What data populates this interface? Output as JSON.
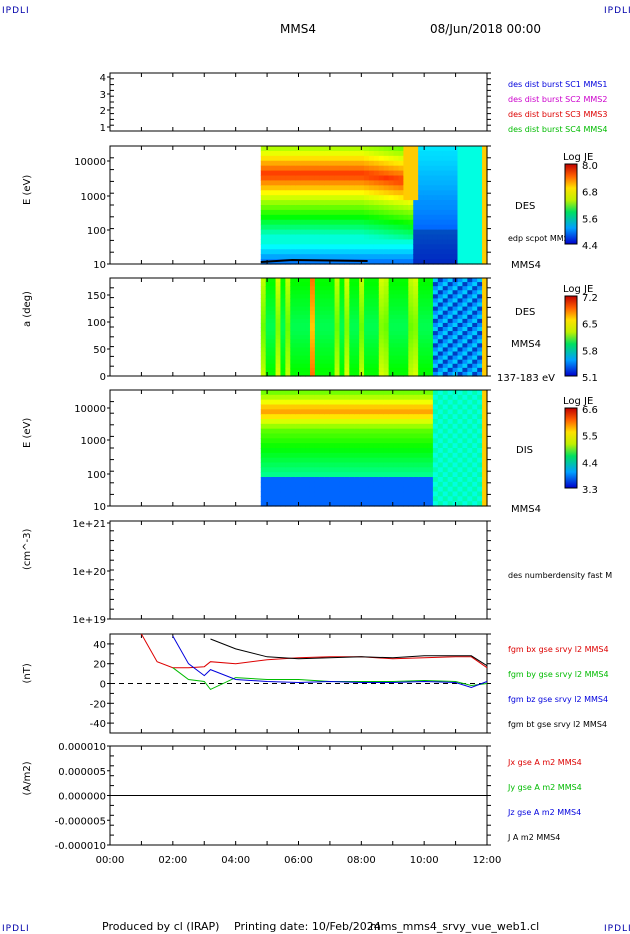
{
  "corners": {
    "tl": "IPDLI",
    "tr": "IPDLI",
    "bl": "IPDLI",
    "br": "IPDLI"
  },
  "header": {
    "spacecraft": "MMS4",
    "datetime": "08/Jun/2018 00:00"
  },
  "footer": {
    "produced_by": "Produced by cl (IRAP)",
    "printing_date": "Printing date: 10/Feb/2024",
    "script": "mms_mms4_srvy_vue_web1.cl"
  },
  "colors": {
    "red": "#dd0000",
    "green": "#00bb00",
    "blue": "#0000dd",
    "magenta": "#cc00cc",
    "black": "#000000"
  },
  "chart_data": [
    {
      "type": "line",
      "yticks": [
        "4",
        "3",
        "2",
        "1"
      ],
      "legend": [
        "des dist burst SC1 MMS1",
        "des dist burst SC2 MMS2",
        "des dist burst SC3 MMS3",
        "des dist burst SC4 MMS4"
      ],
      "legend_colors": [
        "#0000dd",
        "#cc00cc",
        "#dd0000",
        "#00bb00"
      ]
    },
    {
      "type": "heatmap",
      "ylabel": "E (eV)",
      "yticks": [
        "10000",
        "1000",
        "100",
        "10"
      ],
      "label": "DES",
      "label2": "MMS4",
      "overlay": "edp scpot MMS4",
      "colorbar": {
        "title": "Log JE",
        "ticks": [
          "8.0",
          "6.8",
          "5.6",
          "4.4"
        ]
      }
    },
    {
      "type": "heatmap",
      "ylabel": "a (deg)",
      "yticks": [
        "150",
        "100",
        "50",
        "0"
      ],
      "label": "DES",
      "label2": "MMS4",
      "energy_range": "137-183 eV",
      "colorbar": {
        "title": "Log JE",
        "ticks": [
          "7.2",
          "6.5",
          "5.8",
          "5.1"
        ]
      }
    },
    {
      "type": "heatmap",
      "ylabel": "E (eV)",
      "yticks": [
        "10000",
        "1000",
        "100",
        "10"
      ],
      "label": "DIS",
      "label2": "MMS4",
      "colorbar": {
        "title": "Log JE",
        "ticks": [
          "6.6",
          "5.5",
          "4.4",
          "3.3"
        ]
      }
    },
    {
      "type": "line",
      "ylabel": "(cm^-3)",
      "yticks": [
        "1e+21",
        "1e+20",
        "1e+19"
      ],
      "legend": [
        "des numberdensity fast M"
      ],
      "legend_colors": [
        "#000000"
      ]
    },
    {
      "type": "line",
      "ylabel": "(nT)",
      "yticks": [
        "40",
        "20",
        "0",
        "-20",
        "-40"
      ],
      "ylim": [
        -50,
        50
      ],
      "legend": [
        "fgm bx gse srvy l2 MMS4",
        "fgm by gse srvy l2 MMS4",
        "fgm bz gse srvy l2 MMS4",
        "fgm bt gse srvy l2 MMS4"
      ],
      "legend_colors": [
        "#dd0000",
        "#00bb00",
        "#0000dd",
        "#000000"
      ],
      "x_hours": [
        0,
        1,
        1.5,
        2,
        2.5,
        3,
        3.2,
        4,
        5,
        6,
        7,
        8,
        9,
        10,
        11,
        11.5,
        12
      ],
      "series": [
        {
          "name": "fgm bx gse srvy l2 MMS4",
          "color": "#dd0000",
          "values": [
            null,
            50,
            22,
            16,
            16,
            17,
            22,
            20,
            24,
            26,
            27,
            27,
            25,
            26,
            27,
            27,
            16
          ]
        },
        {
          "name": "fgm by gse srvy l2 MMS4",
          "color": "#00bb00",
          "values": [
            null,
            null,
            null,
            16,
            4,
            2,
            -6,
            6,
            4,
            4,
            2,
            2,
            2,
            3,
            2,
            -2,
            0
          ]
        },
        {
          "name": "fgm bz gse srvy l2 MMS4",
          "color": "#0000dd",
          "values": [
            null,
            null,
            null,
            48,
            20,
            8,
            14,
            4,
            2,
            1,
            2,
            1,
            1,
            2,
            1,
            -4,
            2
          ]
        },
        {
          "name": "fgm bt gse srvy l2 MMS4",
          "color": "#000000",
          "values": [
            null,
            null,
            null,
            null,
            null,
            null,
            45,
            35,
            27,
            25,
            26,
            27,
            26,
            28,
            28,
            28,
            18
          ]
        }
      ]
    },
    {
      "type": "line",
      "ylabel": "(A/m2)",
      "yticks": [
        "0.000010",
        "0.000005",
        "0.000000",
        "-0.000005",
        "-0.000010"
      ],
      "ylim": [
        -1e-05,
        1e-05
      ],
      "legend": [
        "Jx gse A m2 MMS4",
        "Jy gse A m2 MMS4",
        "Jz gse A m2 MMS4",
        "J A m2 MMS4"
      ],
      "legend_colors": [
        "#dd0000",
        "#00bb00",
        "#0000dd",
        "#000000"
      ]
    }
  ],
  "xaxis": {
    "ticks": [
      "00:00",
      "02:00",
      "04:00",
      "06:00",
      "08:00",
      "10:00",
      "12:00"
    ],
    "range_hours": [
      0,
      12
    ]
  }
}
